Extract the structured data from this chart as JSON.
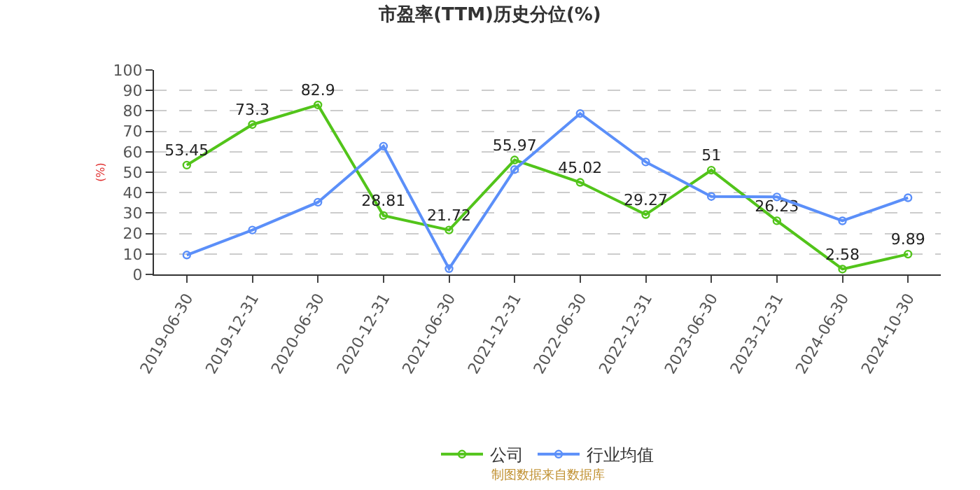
{
  "chart_data": {
    "type": "line",
    "title": "市盈率(TTM)历史分位(%)",
    "ylabel": "(%)",
    "categories": [
      "2019-06-30",
      "2019-12-31",
      "2020-06-30",
      "2020-12-31",
      "2021-06-30",
      "2021-12-31",
      "2022-06-30",
      "2022-12-31",
      "2023-06-30",
      "2023-12-31",
      "2024-06-30",
      "2024-10-30"
    ],
    "series": [
      {
        "name": "公司",
        "color": "#52c41a",
        "values": [
          53.45,
          73.3,
          82.9,
          28.81,
          21.72,
          55.97,
          45.02,
          29.27,
          51,
          26.23,
          2.58,
          9.89
        ],
        "value_labels": [
          "53.45",
          "73.3",
          "82.9",
          "28.81",
          "21.72",
          "55.97",
          "45.02",
          "29.27",
          "51",
          "26.23",
          "2.58",
          "9.89"
        ]
      },
      {
        "name": "行业均值",
        "color": "#5b8ff9",
        "values": [
          9.5,
          21.7,
          35.3,
          62.7,
          2.8,
          51.3,
          78.7,
          55.0,
          38.1,
          37.9,
          26.2,
          37.5
        ]
      }
    ],
    "ylim": [
      0,
      100
    ],
    "yticks": [
      0,
      10,
      20,
      30,
      40,
      50,
      60,
      70,
      80,
      90,
      100
    ],
    "grid": "y",
    "legend": "bottom",
    "marker": "circle",
    "line_style": "solid",
    "annotations": [
      "制图数据来自数据库"
    ]
  }
}
